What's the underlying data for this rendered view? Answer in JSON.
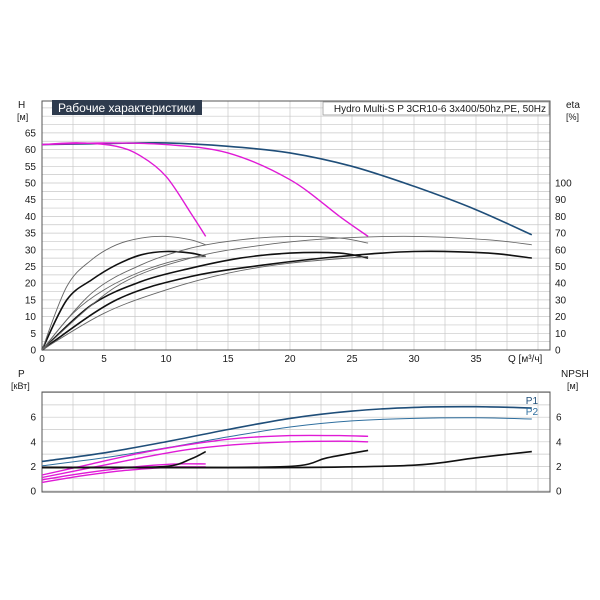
{
  "colors": {
    "grid": "#c8c8c8",
    "frame": "#555555",
    "navy": "#1f4e79",
    "blue_thin": "#2f6f9f",
    "magenta": "#e01ad6",
    "black": "#111111",
    "gray_thin": "#666666",
    "title_bg": "#2e3b4e"
  },
  "chart_data": [
    {
      "id": "top",
      "type": "line",
      "title": "Рабочие характеристики",
      "model": "Hydro Multi-S P 3CR10-6 3x400/50hz,PE, 50Hz",
      "y_left_label": "H",
      "y_left_unit": "[м]",
      "y_right_label": "eta",
      "y_right_unit": "[%]",
      "x_label": "Q [м³/ч]",
      "x_ticks": [
        0,
        5,
        10,
        15,
        20,
        25,
        30,
        35
      ],
      "xlim": [
        0,
        40
      ],
      "y_left_ticks": [
        0,
        5,
        10,
        15,
        20,
        25,
        30,
        35,
        40,
        45,
        50,
        55,
        60,
        65
      ],
      "ylim": [
        0,
        70
      ],
      "y_right_ticks": [
        0,
        10,
        20,
        30,
        40,
        50,
        60,
        70,
        80,
        90,
        100
      ],
      "y_right_lim": [
        0,
        140
      ],
      "grid": true,
      "series": [
        {
          "style": "navy",
          "axis": "left",
          "x": [
            0,
            5,
            10,
            15,
            20,
            25,
            30,
            35,
            39.5
          ],
          "y": [
            61.5,
            61.8,
            62,
            61,
            59,
            55,
            49,
            42,
            34.5
          ]
        },
        {
          "style": "magenta",
          "axis": "left",
          "x": [
            0,
            3,
            6,
            8,
            10,
            12,
            13.2
          ],
          "y": [
            61.5,
            62,
            61,
            58,
            52,
            41,
            34
          ]
        },
        {
          "style": "magenta",
          "axis": "left",
          "x": [
            0,
            5,
            10,
            15,
            20,
            24,
            26.3
          ],
          "y": [
            61.5,
            62,
            61.5,
            59,
            51,
            40,
            34
          ]
        },
        {
          "style": "black",
          "axis": "right",
          "x": [
            0,
            2,
            4,
            6,
            8,
            10,
            12,
            13.2
          ],
          "y": [
            0,
            30,
            42,
            51,
            57,
            59,
            58,
            56
          ]
        },
        {
          "style": "black",
          "axis": "right",
          "x": [
            0,
            4,
            8,
            12,
            16,
            20,
            24,
            26.3
          ],
          "y": [
            0,
            27,
            41,
            49,
            55,
            58,
            58,
            55
          ]
        },
        {
          "style": "black",
          "axis": "right",
          "x": [
            0,
            6,
            12,
            18,
            24,
            30,
            36,
            39.5
          ],
          "y": [
            0,
            30,
            44,
            51,
            56,
            59,
            58,
            55
          ]
        },
        {
          "style": "gray_thin",
          "axis": "right",
          "x": [
            0,
            2,
            4,
            6,
            8,
            10,
            12,
            13.2
          ],
          "y": [
            0,
            38,
            54,
            63,
            67,
            68,
            66,
            63
          ]
        },
        {
          "style": "gray_thin",
          "axis": "right",
          "x": [
            0,
            4,
            8,
            12,
            16,
            20,
            24,
            26.3
          ],
          "y": [
            0,
            34,
            51,
            61,
            66,
            68,
            67,
            64
          ]
        },
        {
          "style": "gray_thin",
          "axis": "right",
          "x": [
            0,
            6,
            12,
            18,
            24,
            30,
            36,
            39.5
          ],
          "y": [
            0,
            38,
            55,
            63,
            67,
            68,
            66,
            63
          ]
        },
        {
          "style": "gray_thin",
          "axis": "right",
          "x": [
            0,
            2.5,
            5,
            8,
            11,
            13.2
          ],
          "y": [
            0,
            22,
            36,
            47,
            54,
            56
          ]
        },
        {
          "style": "gray_thin",
          "axis": "right",
          "x": [
            0,
            5,
            10,
            15,
            20,
            26.3
          ],
          "y": [
            0,
            22,
            36,
            46,
            52,
            56
          ]
        }
      ]
    },
    {
      "id": "bottom",
      "type": "line",
      "y_left_label": "P",
      "y_left_unit": "[кВт]",
      "y_right_label": "NPSH",
      "y_right_unit": "[м]",
      "y_left_ticks": [
        0,
        2,
        4,
        6
      ],
      "y_right_ticks": [
        0,
        2,
        4,
        6
      ],
      "ylim": [
        0,
        8
      ],
      "xlim": [
        0,
        40
      ],
      "grid": true,
      "series": [
        {
          "name": "P1",
          "style": "navy",
          "x": [
            0,
            5,
            10,
            15,
            20,
            25,
            30,
            35,
            39.5
          ],
          "y": [
            2.4,
            3.1,
            4.0,
            5.0,
            5.9,
            6.5,
            6.8,
            6.85,
            6.75
          ]
        },
        {
          "name": "P2",
          "style": "blue_thin",
          "x": [
            0,
            5,
            10,
            15,
            20,
            25,
            30,
            35,
            39.5
          ],
          "y": [
            2.05,
            2.7,
            3.5,
            4.4,
            5.2,
            5.7,
            5.9,
            5.95,
            5.85
          ]
        },
        {
          "style": "magenta",
          "x": [
            0,
            4,
            8,
            12,
            16,
            20,
            24,
            26.3
          ],
          "y": [
            1.3,
            2.2,
            3.1,
            3.8,
            4.3,
            4.5,
            4.5,
            4.45
          ]
        },
        {
          "style": "magenta",
          "x": [
            0,
            4,
            8,
            12,
            16,
            20,
            24,
            26.3
          ],
          "y": [
            1.1,
            1.9,
            2.7,
            3.4,
            3.8,
            4.0,
            4.05,
            4.0
          ]
        },
        {
          "style": "magenta",
          "x": [
            0,
            3,
            6,
            9,
            11,
            13.2
          ],
          "y": [
            0.9,
            1.4,
            1.8,
            2.1,
            2.2,
            2.2
          ]
        },
        {
          "style": "magenta",
          "x": [
            0,
            3,
            6,
            9,
            11,
            13.2
          ],
          "y": [
            0.7,
            1.2,
            1.6,
            1.85,
            1.95,
            1.95
          ]
        },
        {
          "style": "black",
          "x": [
            0,
            5,
            10,
            12,
            13.2
          ],
          "y": [
            1.9,
            1.9,
            2.0,
            2.6,
            3.2
          ]
        },
        {
          "style": "black",
          "x": [
            0,
            10,
            20,
            23,
            26.3
          ],
          "y": [
            1.9,
            1.9,
            2.0,
            2.7,
            3.3
          ]
        },
        {
          "style": "black",
          "x": [
            0,
            10,
            20,
            30,
            35,
            39.5
          ],
          "y": [
            1.9,
            1.9,
            1.9,
            2.1,
            2.7,
            3.2
          ]
        }
      ]
    }
  ]
}
